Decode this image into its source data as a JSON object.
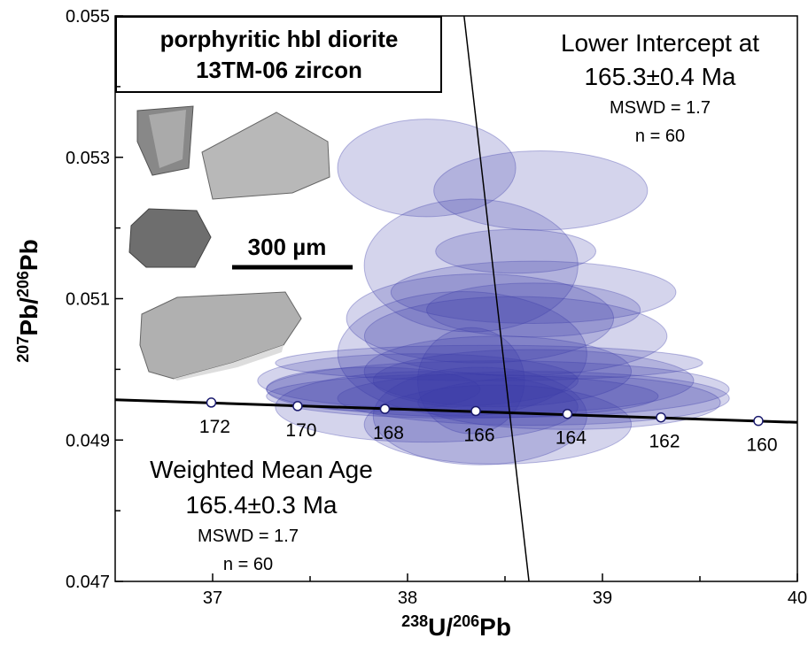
{
  "chart_data": {
    "type": "concordia",
    "x_label": [
      "238",
      "U/",
      "206",
      "Pb"
    ],
    "y_label": [
      "207",
      "Pb/",
      "206",
      "Pb"
    ],
    "xlim": [
      36.5,
      40
    ],
    "ylim": [
      0.047,
      0.055
    ],
    "xticks": [
      37,
      38,
      39,
      40
    ],
    "yticks": [
      0.047,
      0.049,
      0.051,
      0.053,
      0.055
    ],
    "x_minor_ticks": [
      37.5,
      38.5,
      39.5
    ],
    "y_minor_ticks": [
      0.048,
      0.05,
      0.052,
      0.054
    ],
    "concordia_line": {
      "x": [
        36.5,
        40
      ],
      "y": [
        0.04957,
        0.04925
      ]
    },
    "discordia_line": {
      "x": [
        38.29,
        38.623
      ],
      "y": [
        0.055,
        0.047
      ]
    },
    "concordia_points": {
      "x": [
        36.993,
        37.436,
        37.884,
        38.35,
        38.82,
        39.3,
        39.8
      ],
      "y": [
        0.04953,
        0.04948,
        0.04944,
        0.04941,
        0.04937,
        0.04932,
        0.04927
      ],
      "labels": [
        172,
        170,
        168,
        166,
        164,
        162,
        160
      ]
    },
    "ellipse_color": "#3c3ca8",
    "ellipses": {
      "x": [
        38.098,
        38.683,
        38.326,
        38.555,
        38.646,
        38.372,
        38.555,
        38.281,
        38.463,
        38.646,
        38.053,
        38.463,
        38.281,
        38.646,
        38.372,
        38.098,
        38.829,
        38.463,
        37.824,
        38.418,
        38.646,
        38.326
      ],
      "y": [
        0.05285,
        0.05253,
        0.05147,
        0.05167,
        0.05109,
        0.05072,
        0.05047,
        0.05022,
        0.04997,
        0.04984,
        0.04984,
        0.04972,
        0.04962,
        0.04959,
        0.04934,
        0.04947,
        0.04953,
        0.04922,
        0.04972,
        0.05009,
        0.05084,
        0.04984
      ],
      "x_err": [
        0.457,
        0.548,
        0.548,
        0.411,
        0.731,
        0.685,
        0.776,
        0.639,
        0.685,
        0.822,
        0.822,
        1.187,
        1.005,
        1.005,
        0.548,
        0.776,
        0.776,
        0.685,
        0.548,
        1.096,
        0.548,
        0.274
      ],
      "y_err": [
        0.00069,
        0.00056,
        0.00094,
        0.00031,
        0.00044,
        0.00063,
        0.00056,
        0.00088,
        0.0005,
        0.00044,
        0.00038,
        0.0004,
        0.00031,
        0.00038,
        0.00069,
        0.0005,
        0.00038,
        0.00056,
        0.00031,
        0.00025,
        0.00038,
        0.00075
      ]
    },
    "sample_box": [
      "porphyritic hbl diorite",
      "13TM-06 zircon"
    ],
    "scale_bar": "300 µm",
    "lower_intercept": [
      "Lower Intercept at",
      "165.3±0.4 Ma",
      "MSWD = 1.7",
      "n = 60"
    ],
    "weighted_mean": [
      "Weighted Mean Age",
      "165.4±0.3 Ma",
      "MSWD = 1.7",
      "n = 60"
    ]
  }
}
